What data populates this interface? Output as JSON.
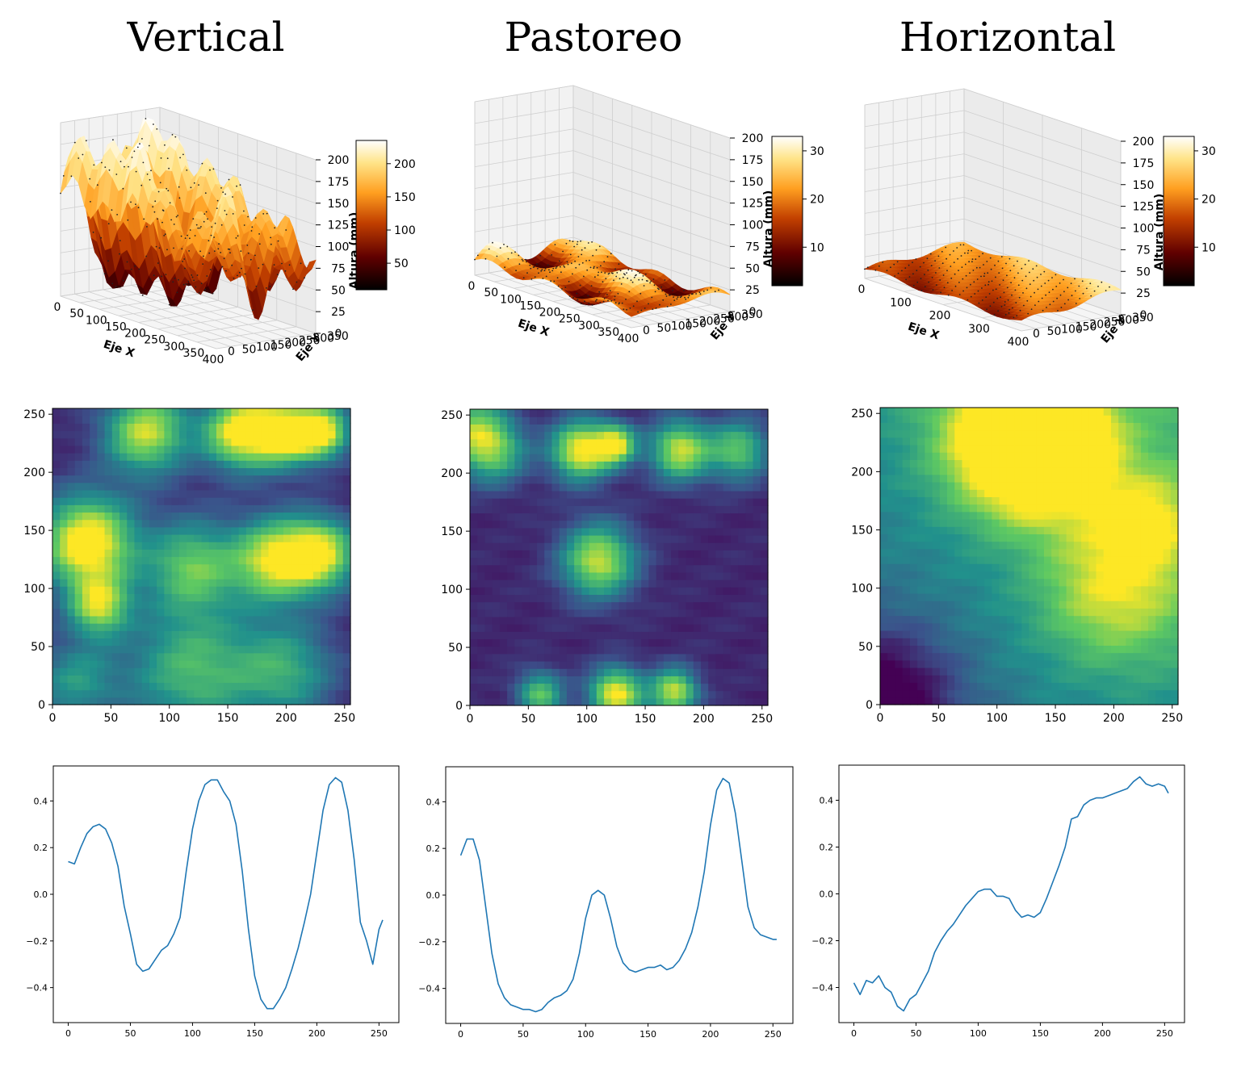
{
  "titles": [
    "Vertical",
    "Pastoreo",
    "Horizontal"
  ],
  "surface_axes": {
    "xlabel": "Eje X",
    "ylabel": "Eje Y",
    "zlabel": "Altura (mm)",
    "z_ticks": [
      "0",
      "25",
      "50",
      "75",
      "100",
      "125",
      "150",
      "175",
      "200"
    ]
  },
  "colors": {
    "line": "#1f77b4",
    "afmhot": [
      "#000000",
      "#600000",
      "#c24000",
      "#ff9f20",
      "#ffe488",
      "#ffffff"
    ],
    "viridis": [
      "#440154",
      "#3b528b",
      "#21918c",
      "#5ec962",
      "#fde725"
    ]
  },
  "chart_data": [
    {
      "type": "surface3d",
      "title": "Vertical",
      "x_ticks": [
        "0",
        "50",
        "100",
        "150",
        "200",
        "250",
        "300",
        "350",
        "400"
      ],
      "y_ticks": [
        "0",
        "50",
        "100",
        "150",
        "200",
        "250",
        "300",
        "350"
      ],
      "z_range": [
        0,
        200
      ],
      "colorbar": {
        "ticks": [
          "50",
          "100",
          "150",
          "200"
        ],
        "range": [
          10,
          235
        ],
        "cmap": "afmhot"
      }
    },
    {
      "type": "surface3d",
      "title": "Pastoreo",
      "x_ticks": [
        "0",
        "50",
        "100",
        "150",
        "200",
        "250",
        "300",
        "350",
        "400"
      ],
      "y_ticks": [
        "0",
        "50",
        "100",
        "150",
        "200",
        "250",
        "300",
        "350"
      ],
      "z_range": [
        0,
        200
      ],
      "colorbar": {
        "ticks": [
          "10",
          "20",
          "30"
        ],
        "range": [
          2,
          33
        ],
        "cmap": "afmhot"
      }
    },
    {
      "type": "surface3d",
      "title": "Horizontal",
      "x_ticks": [
        "0",
        "100",
        "200",
        "300",
        "400"
      ],
      "y_ticks": [
        "0",
        "50",
        "100",
        "150",
        "200",
        "250",
        "300",
        "350"
      ],
      "z_range": [
        0,
        200
      ],
      "colorbar": {
        "ticks": [
          "10",
          "20",
          "30"
        ],
        "range": [
          2,
          33
        ],
        "cmap": "afmhot"
      }
    },
    {
      "type": "heatmap",
      "cmap": "viridis",
      "xlim": [
        0,
        255
      ],
      "ylim": [
        0,
        255
      ],
      "x_ticks": [
        "0",
        "50",
        "100",
        "150",
        "200",
        "250"
      ],
      "y_ticks": [
        "0",
        "50",
        "100",
        "150",
        "200",
        "250"
      ],
      "blobs": [
        [
          80,
          235,
          25,
          0.8
        ],
        [
          160,
          235,
          22,
          0.9
        ],
        [
          200,
          235,
          20,
          0.9
        ],
        [
          232,
          235,
          16,
          0.8
        ],
        [
          30,
          140,
          28,
          1.0
        ],
        [
          120,
          120,
          28,
          0.6
        ],
        [
          190,
          125,
          25,
          0.8
        ],
        [
          230,
          130,
          22,
          0.8
        ],
        [
          40,
          85,
          18,
          0.7
        ],
        [
          120,
          30,
          40,
          0.55
        ],
        [
          200,
          30,
          30,
          0.45
        ],
        [
          20,
          20,
          25,
          0.4
        ]
      ]
    },
    {
      "type": "heatmap",
      "cmap": "viridis",
      "xlim": [
        0,
        255
      ],
      "ylim": [
        0,
        255
      ],
      "x_ticks": [
        "0",
        "50",
        "100",
        "150",
        "200",
        "250"
      ],
      "y_ticks": [
        "0",
        "50",
        "100",
        "150",
        "200",
        "250"
      ],
      "blobs": [
        [
          20,
          220,
          20,
          0.6
        ],
        [
          95,
          220,
          18,
          0.9
        ],
        [
          125,
          225,
          12,
          0.8
        ],
        [
          180,
          220,
          18,
          0.8
        ],
        [
          230,
          220,
          18,
          0.6
        ],
        [
          110,
          125,
          22,
          0.8
        ],
        [
          125,
          10,
          16,
          0.9
        ],
        [
          175,
          12,
          14,
          0.8
        ],
        [
          60,
          10,
          14,
          0.6
        ],
        [
          0,
          240,
          20,
          0.5
        ]
      ]
    },
    {
      "type": "heatmap",
      "cmap": "viridis",
      "xlim": [
        0,
        255
      ],
      "ylim": [
        0,
        255
      ],
      "x_ticks": [
        "0",
        "50",
        "100",
        "150",
        "200",
        "250"
      ],
      "y_ticks": [
        "0",
        "50",
        "100",
        "150",
        "200",
        "250"
      ],
      "blobs": [
        [
          120,
          230,
          45,
          0.9
        ],
        [
          150,
          220,
          35,
          0.5
        ],
        [
          200,
          100,
          45,
          0.45
        ],
        [
          230,
          160,
          30,
          0.35
        ]
      ]
    },
    {
      "type": "line",
      "xlim": [
        -12,
        266
      ],
      "ylim": [
        -0.55,
        0.55
      ],
      "x_ticks": [
        "0",
        "50",
        "100",
        "150",
        "200",
        "250"
      ],
      "y_ticks": [
        "−0.4",
        "−0.2",
        "0.0",
        "0.2",
        "0.4"
      ],
      "x": [
        0,
        5,
        10,
        15,
        20,
        25,
        30,
        35,
        40,
        45,
        50,
        55,
        60,
        65,
        70,
        75,
        80,
        85,
        90,
        95,
        100,
        105,
        110,
        115,
        120,
        125,
        130,
        135,
        140,
        145,
        150,
        155,
        160,
        165,
        170,
        175,
        180,
        185,
        190,
        195,
        200,
        205,
        210,
        215,
        220,
        225,
        230,
        235,
        240,
        245,
        250,
        253
      ],
      "y": [
        0.14,
        0.13,
        0.2,
        0.26,
        0.29,
        0.3,
        0.28,
        0.22,
        0.12,
        -0.05,
        -0.17,
        -0.3,
        -0.33,
        -0.32,
        -0.28,
        -0.24,
        -0.22,
        -0.17,
        -0.1,
        0.1,
        0.28,
        0.4,
        0.47,
        0.49,
        0.49,
        0.44,
        0.4,
        0.3,
        0.1,
        -0.15,
        -0.35,
        -0.45,
        -0.49,
        -0.49,
        -0.45,
        -0.4,
        -0.32,
        -0.23,
        -0.12,
        0.0,
        0.18,
        0.36,
        0.47,
        0.5,
        0.48,
        0.36,
        0.15,
        -0.12,
        -0.2,
        -0.3,
        -0.15,
        -0.11
      ]
    },
    {
      "type": "line",
      "xlim": [
        -12,
        266
      ],
      "ylim": [
        -0.55,
        0.55
      ],
      "x_ticks": [
        "0",
        "50",
        "100",
        "150",
        "200",
        "250"
      ],
      "y_ticks": [
        "−0.4",
        "−0.2",
        "0.0",
        "0.2",
        "0.4"
      ],
      "x": [
        0,
        5,
        10,
        15,
        20,
        25,
        30,
        35,
        40,
        45,
        50,
        55,
        60,
        65,
        70,
        75,
        80,
        85,
        90,
        95,
        100,
        105,
        110,
        115,
        120,
        125,
        130,
        135,
        140,
        145,
        150,
        155,
        160,
        165,
        170,
        175,
        180,
        185,
        190,
        195,
        200,
        205,
        210,
        215,
        220,
        225,
        230,
        235,
        240,
        245,
        250,
        253
      ],
      "y": [
        0.17,
        0.24,
        0.24,
        0.15,
        -0.05,
        -0.25,
        -0.38,
        -0.44,
        -0.47,
        -0.48,
        -0.49,
        -0.49,
        -0.5,
        -0.49,
        -0.46,
        -0.44,
        -0.43,
        -0.41,
        -0.36,
        -0.25,
        -0.1,
        0.0,
        0.02,
        0.0,
        -0.1,
        -0.22,
        -0.29,
        -0.32,
        -0.33,
        -0.32,
        -0.31,
        -0.31,
        -0.3,
        -0.32,
        -0.31,
        -0.28,
        -0.23,
        -0.16,
        -0.05,
        0.1,
        0.3,
        0.45,
        0.5,
        0.48,
        0.35,
        0.15,
        -0.05,
        -0.14,
        -0.17,
        -0.18,
        -0.19,
        -0.19
      ]
    },
    {
      "type": "line",
      "xlim": [
        -12,
        266
      ],
      "ylim": [
        -0.55,
        0.55
      ],
      "x_ticks": [
        "0",
        "50",
        "100",
        "150",
        "200",
        "250"
      ],
      "y_ticks": [
        "−0.4",
        "−0.2",
        "0.0",
        "0.2",
        "0.4"
      ],
      "x": [
        0,
        5,
        10,
        15,
        20,
        25,
        30,
        35,
        40,
        45,
        50,
        55,
        60,
        65,
        70,
        75,
        80,
        85,
        90,
        95,
        100,
        105,
        110,
        115,
        120,
        125,
        130,
        135,
        140,
        145,
        150,
        155,
        160,
        165,
        170,
        175,
        180,
        185,
        190,
        195,
        200,
        205,
        210,
        215,
        220,
        225,
        230,
        235,
        240,
        245,
        250,
        253
      ],
      "y": [
        -0.38,
        -0.43,
        -0.37,
        -0.38,
        -0.35,
        -0.4,
        -0.42,
        -0.48,
        -0.5,
        -0.45,
        -0.43,
        -0.38,
        -0.33,
        -0.25,
        -0.2,
        -0.16,
        -0.13,
        -0.09,
        -0.05,
        -0.02,
        0.01,
        0.02,
        0.02,
        -0.01,
        -0.01,
        -0.02,
        -0.07,
        -0.1,
        -0.09,
        -0.1,
        -0.08,
        -0.02,
        0.05,
        0.12,
        0.2,
        0.32,
        0.33,
        0.38,
        0.4,
        0.41,
        0.41,
        0.42,
        0.43,
        0.44,
        0.45,
        0.48,
        0.5,
        0.47,
        0.46,
        0.47,
        0.46,
        0.43
      ]
    }
  ]
}
